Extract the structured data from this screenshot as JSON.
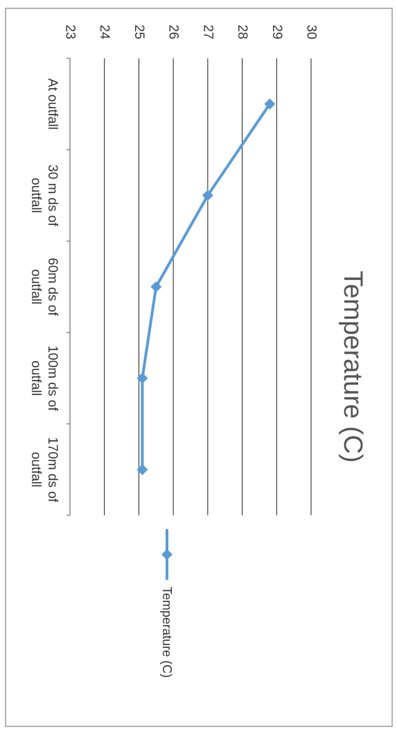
{
  "chart_data": {
    "type": "line",
    "title": "Temperature (C)",
    "categories": [
      [
        "At outfall"
      ],
      [
        "30 m ds of",
        "outfall"
      ],
      [
        "60m ds of",
        "outfall"
      ],
      [
        "100m ds of",
        "outfall"
      ],
      [
        "170m ds of",
        "outfall"
      ]
    ],
    "series": [
      {
        "name": "Temperature (C)",
        "values": [
          28.8,
          27.0,
          25.5,
          25.1,
          25.1
        ]
      }
    ],
    "yticks": [
      23,
      24,
      25,
      26,
      27,
      28,
      29,
      30
    ],
    "ylim": [
      23,
      30
    ],
    "grid": true,
    "legend_position": "right",
    "orientation": "rotated 90 degrees clockwise",
    "colors": {
      "series": "#5b9bd5",
      "grid": "#000000",
      "border": "#9a9a9a"
    }
  }
}
